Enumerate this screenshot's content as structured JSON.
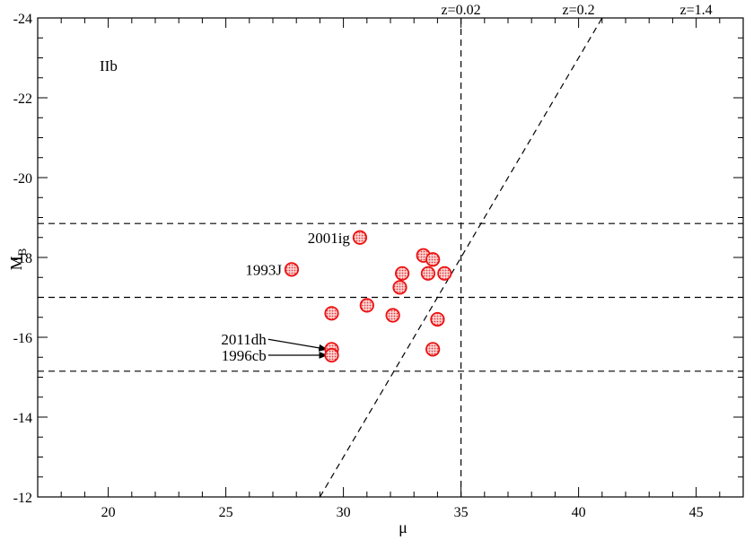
{
  "chart_data": {
    "type": "scatter",
    "title": "",
    "xlabel": "μ",
    "ylabel_main": "M",
    "ylabel_sub": "B",
    "xlim": [
      17,
      47
    ],
    "ylim": [
      -12,
      -24
    ],
    "x_ticks": [
      20,
      25,
      30,
      35,
      40,
      45
    ],
    "x_tick_labels": [
      "20",
      "25",
      "30",
      "35",
      "40",
      "45"
    ],
    "y_ticks": [
      -12,
      -14,
      -16,
      -18,
      -20,
      -22,
      -24
    ],
    "y_tick_labels": [
      "-12",
      "-14",
      "-16",
      "-18",
      "-20",
      "-22",
      "-24"
    ],
    "x_minor_step": 1,
    "y_minor_step": 0.5,
    "panel_label": "IIb",
    "grid": false,
    "marker_color": "#ee1111",
    "marker_fill": "#f4a7a7",
    "series": [
      {
        "points": [
          {
            "x": 27.8,
            "y": -17.7,
            "label": "1993J"
          },
          {
            "x": 30.7,
            "y": -18.5,
            "label": "2001ig"
          },
          {
            "x": 29.5,
            "y": -16.6
          },
          {
            "x": 29.5,
            "y": -15.7,
            "label": "2011dh"
          },
          {
            "x": 29.5,
            "y": -15.55,
            "label": "1996cb"
          },
          {
            "x": 31.0,
            "y": -16.8
          },
          {
            "x": 32.1,
            "y": -16.55
          },
          {
            "x": 32.4,
            "y": -17.25
          },
          {
            "x": 32.5,
            "y": -17.6
          },
          {
            "x": 33.4,
            "y": -18.05
          },
          {
            "x": 33.6,
            "y": -17.6
          },
          {
            "x": 33.8,
            "y": -17.95
          },
          {
            "x": 34.3,
            "y": -17.6
          },
          {
            "x": 33.8,
            "y": -15.7
          },
          {
            "x": 34.0,
            "y": -16.45
          }
        ]
      }
    ],
    "hlines": [
      -18.85,
      -17.0,
      -15.15
    ],
    "vlines": [
      35.0
    ],
    "diagonal": {
      "from": [
        29.0,
        -12.0
      ],
      "to": [
        41.0,
        -24.0
      ]
    },
    "redshift_labels": [
      {
        "x": 35.0,
        "text": "z=0.02"
      },
      {
        "x": 40.0,
        "text": "z=0.2"
      },
      {
        "x": 45.0,
        "text": "z=1.4"
      }
    ],
    "arrows": [
      {
        "label": "2011dh",
        "from": [
          26.8,
          -15.95
        ],
        "to": [
          29.3,
          -15.7
        ]
      },
      {
        "label": "1996cb",
        "from": [
          26.8,
          -15.55
        ],
        "to": [
          29.3,
          -15.55
        ]
      }
    ]
  }
}
